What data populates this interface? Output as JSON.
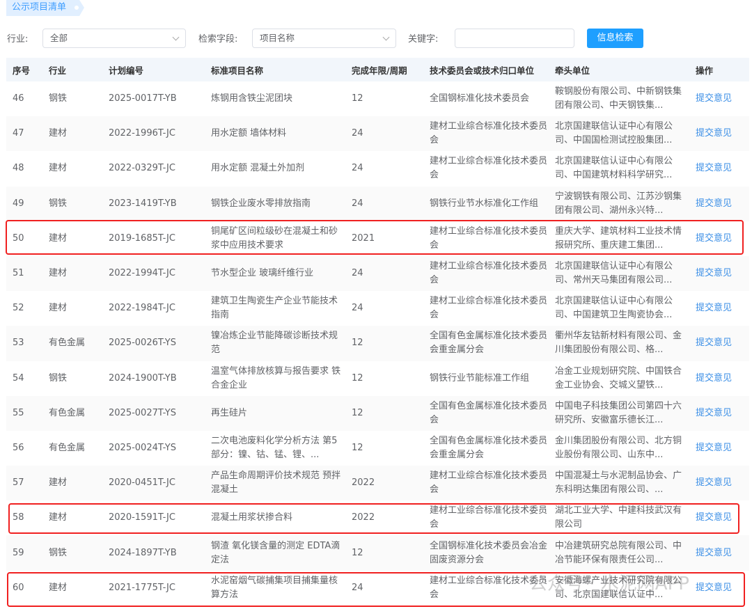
{
  "page_tag": "公示项目清单",
  "filters": {
    "industry_label": "行业:",
    "industry_value": "全部",
    "field_label": "检索字段:",
    "field_value": "项目名称",
    "keyword_label": "关键字:",
    "keyword_value": "",
    "search_button": "信息检索"
  },
  "table": {
    "headers": [
      "序号",
      "行业",
      "计划编号",
      "标准项目名称",
      "完成年限/周期",
      "技术委员会或技术归口单位",
      "牵头单位",
      "操作"
    ],
    "rows": [
      {
        "no": "46",
        "industry": "钢铁",
        "plan": "2025-0017T-YB",
        "name": "炼钢用含铁尘泥团块",
        "period": "12",
        "committee": "全国钢标准化技术委员会",
        "lead": "鞍钢股份有限公司、中新钢铁集团有限公司、中天钢铁集...",
        "action": "提交意见"
      },
      {
        "no": "47",
        "industry": "建材",
        "plan": "2022-1996T-JC",
        "name": "用水定额 墙体材料",
        "period": "24",
        "committee": "建材工业综合标准化技术委员会",
        "lead": "北京国建联信认证中心有限公司、中国国检测试控股集团...",
        "action": "提交意见"
      },
      {
        "no": "48",
        "industry": "建材",
        "plan": "2022-0329T-JC",
        "name": "用水定额 混凝土外加剂",
        "period": "24",
        "committee": "建材工业综合标准化技术委员会",
        "lead": "北京国建联信认证中心有限公司、中国建筑材料科学研究...",
        "action": "提交意见"
      },
      {
        "no": "49",
        "industry": "钢铁",
        "plan": "2023-1419T-YB",
        "name": "钢铁企业废水零排放指南",
        "period": "24",
        "committee": "钢铁行业节水标准化工作组",
        "lead": "宁波钢铁有限公司、江苏沙钢集团有限公司、湖州永兴特...",
        "action": "提交意见"
      },
      {
        "no": "50",
        "industry": "建材",
        "plan": "2019-1685T-JC",
        "name": "铜尾矿区间粒级砂在混凝土和砂浆中应用技术要求",
        "period": "2021",
        "committee": "建材工业综合标准化技术委员会",
        "lead": "重庆大学、建筑材料工业技术情报研究所、重庆建工集团...",
        "action": "提交意见",
        "highlighted": true
      },
      {
        "no": "51",
        "industry": "建材",
        "plan": "2022-1994T-JC",
        "name": "节水型企业 玻璃纤维行业",
        "period": "24",
        "committee": "建材工业综合标准化技术委员会",
        "lead": "北京国建联信认证中心有限公司、常州天马集团有限公司...",
        "action": "提交意见"
      },
      {
        "no": "52",
        "industry": "建材",
        "plan": "2022-1984T-JC",
        "name": "建筑卫生陶瓷生产企业节能技术指南",
        "period": "24",
        "committee": "建材工业综合标准化技术委员会",
        "lead": "北京国建联信认证中心有限公司、中国建筑卫生陶瓷协会...",
        "action": "提交意见"
      },
      {
        "no": "53",
        "industry": "有色金属",
        "plan": "2025-0026T-YS",
        "name": "镍冶炼企业节能降碳诊断技术规范",
        "period": "12",
        "committee": "全国有色金属标准化技术委员会重金属分会",
        "lead": "衢州华友钴新材料有限公司、金川集团股份有限公司、格...",
        "action": "提交意见"
      },
      {
        "no": "54",
        "industry": "钢铁",
        "plan": "2024-1900T-YB",
        "name": "温室气体排放核算与报告要求 铁合金企业",
        "period": "12",
        "committee": "钢铁行业节能标准工作组",
        "lead": "冶金工业规划研究院、中国铁合金工业协会、交城义望铁...",
        "action": "提交意见"
      },
      {
        "no": "55",
        "industry": "有色金属",
        "plan": "2025-0027T-YS",
        "name": "再生硅片",
        "period": "12",
        "committee": "全国有色金属标准化技术委员会",
        "lead": "中国电子科技集团公司第四十六研究所、安徽富乐德长江...",
        "action": "提交意见"
      },
      {
        "no": "56",
        "industry": "有色金属",
        "plan": "2025-0024T-YS",
        "name": "二次电池废料化学分析方法 第5部分：镍、钴、锰、锂、...",
        "period": "12",
        "committee": "全国有色金属标准化技术委员会重金属分会",
        "lead": "金川集团股份有限公司、北方铜业股份有限公司、山东中...",
        "action": "提交意见"
      },
      {
        "no": "57",
        "industry": "建材",
        "plan": "2020-0451T-JC",
        "name": "产品生命周期评价技术规范 预拌混凝土",
        "period": "2022",
        "committee": "建材工业综合标准化技术委员会",
        "lead": "中国混凝土与水泥制品协会、广东科明达集团有限公司、...",
        "action": "提交意见"
      },
      {
        "no": "58",
        "industry": "建材",
        "plan": "2020-1591T-JC",
        "name": "混凝土用浆状掺合料",
        "period": "2022",
        "committee": "建材工业综合标准化技术委员会",
        "lead": "湖北工业大学、中建科技武汉有限公司",
        "action": "提交意见",
        "highlighted": true
      },
      {
        "no": "59",
        "industry": "钢铁",
        "plan": "2024-1897T-YB",
        "name": "钢渣 氧化镁含量的测定 EDTA滴定法",
        "period": "12",
        "committee": "全国钢标准化技术委员会冶金固废资源分会",
        "lead": "中冶建筑研究总院有限公司、中冶节能环保有限责任公司...",
        "action": "提交意见"
      },
      {
        "no": "60",
        "industry": "建材",
        "plan": "2021-1775T-JC",
        "name": "水泥窑烟气碳捕集项目捕集量核算方法",
        "period": "24",
        "committee": "建材工业综合标准化技术委员会",
        "lead": "安徽海螺产业技术研究院有限公司、北京国建联信认证中...",
        "action": "提交意见",
        "highlighted": true
      }
    ]
  },
  "watermark": "公众号 · 水泥网APP",
  "colors": {
    "accent": "#1e9fff",
    "link": "#3a8ee6",
    "highlight": "#f02020"
  }
}
